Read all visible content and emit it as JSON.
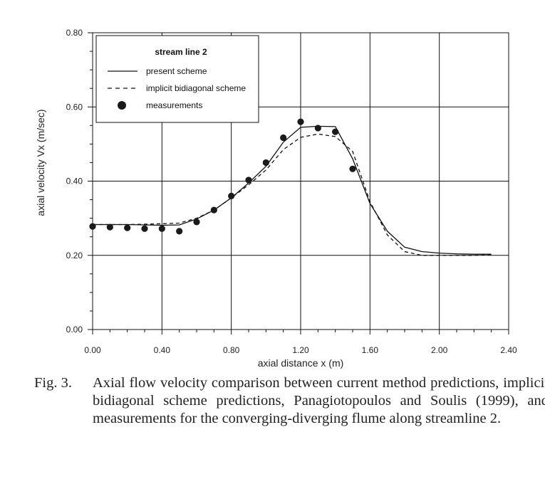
{
  "chart_data": {
    "type": "line",
    "xlabel": "axial distance x (m)",
    "ylabel": "axial velocity Vx (m/sec)",
    "xlim": [
      0,
      2.4
    ],
    "ylim": [
      0,
      0.8
    ],
    "x_ticks": [
      "0.00",
      "0.40",
      "0.80",
      "1.20",
      "1.60",
      "2.00",
      "2.40"
    ],
    "y_ticks": [
      "0.00",
      "0.20",
      "0.40",
      "0.60",
      "0.80"
    ],
    "grid": true,
    "legend_title": "stream line 2",
    "legend_position": "top-left",
    "series": [
      {
        "name": "present scheme",
        "style": "solid",
        "x": [
          0.0,
          0.1,
          0.2,
          0.3,
          0.4,
          0.5,
          0.6,
          0.7,
          0.8,
          0.9,
          1.0,
          1.1,
          1.2,
          1.3,
          1.4,
          1.5,
          1.6,
          1.7,
          1.8,
          1.9,
          2.0,
          2.1,
          2.2,
          2.3
        ],
        "y": [
          0.283,
          0.283,
          0.283,
          0.282,
          0.281,
          0.282,
          0.298,
          0.322,
          0.355,
          0.395,
          0.44,
          0.505,
          0.545,
          0.548,
          0.547,
          0.46,
          0.34,
          0.265,
          0.222,
          0.21,
          0.206,
          0.204,
          0.203,
          0.203
        ]
      },
      {
        "name": "implicit bidiagonal scheme",
        "style": "dashed",
        "x": [
          0.0,
          0.1,
          0.2,
          0.3,
          0.4,
          0.5,
          0.6,
          0.7,
          0.8,
          0.9,
          1.0,
          1.1,
          1.2,
          1.3,
          1.4,
          1.5,
          1.6,
          1.7,
          1.8,
          1.9,
          2.0,
          2.1,
          2.2,
          2.3
        ],
        "y": [
          0.283,
          0.283,
          0.283,
          0.284,
          0.285,
          0.287,
          0.3,
          0.322,
          0.355,
          0.39,
          0.43,
          0.485,
          0.518,
          0.527,
          0.52,
          0.48,
          0.345,
          0.255,
          0.21,
          0.2,
          0.2,
          0.2,
          0.2,
          0.202
        ]
      },
      {
        "name": "measurements",
        "style": "markers",
        "x": [
          0.0,
          0.1,
          0.2,
          0.3,
          0.4,
          0.5,
          0.6,
          0.7,
          0.8,
          0.9,
          1.0,
          1.1,
          1.2,
          1.3,
          1.4,
          1.5
        ],
        "y": [
          0.278,
          0.276,
          0.274,
          0.272,
          0.272,
          0.265,
          0.29,
          0.322,
          0.36,
          0.403,
          0.45,
          0.517,
          0.56,
          0.543,
          0.533,
          0.433
        ]
      }
    ]
  },
  "caption": {
    "label": "Fig. 3.",
    "text": "Axial flow velocity comparison between current method predictions, implicit bidiagonal scheme predictions, Panagiotopoulos and Soulis (1999), and measurements for the converging-diverging flume along streamline 2."
  },
  "colors": {
    "line": "#111111",
    "grid": "#111111",
    "marker": "#1a1a1a"
  }
}
